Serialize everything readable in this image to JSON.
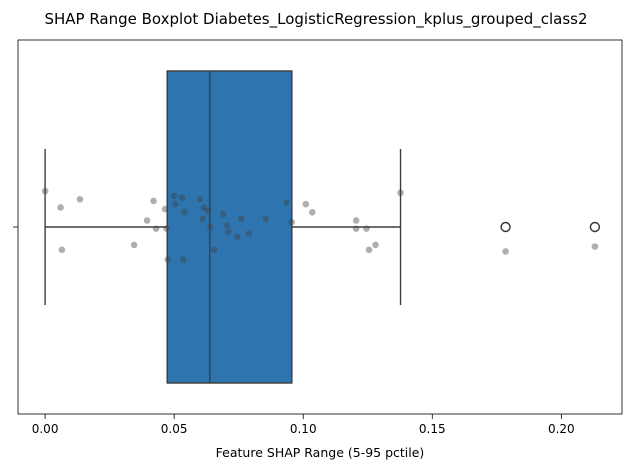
{
  "chart_data": {
    "type": "boxplot",
    "title": "SHAP Range Boxplot Diabetes_LogisticRegression_kplus_grouped_class2",
    "xlabel": "Feature SHAP Range (5-95 pctile)",
    "ylabel": "",
    "xlim": [
      -0.0105,
      0.2235
    ],
    "xticks": [
      "0.00",
      "0.05",
      "0.10",
      "0.15",
      "0.20"
    ],
    "xtick_values": [
      0.0,
      0.05,
      0.1,
      0.15,
      0.2
    ],
    "grid": false,
    "box": {
      "whisker_low": 0.0,
      "q1": 0.0473,
      "median": 0.0638,
      "q3": 0.0956,
      "whisker_high": 0.1377,
      "outliers": [
        0.1784,
        0.213
      ],
      "color": "#2e75b0"
    },
    "strip_points": [
      {
        "x": 0.0,
        "y": 0.22
      },
      {
        "x": 0.0065,
        "y": -0.14
      },
      {
        "x": 0.006,
        "y": 0.12
      },
      {
        "x": 0.0135,
        "y": 0.17
      },
      {
        "x": 0.0345,
        "y": -0.11
      },
      {
        "x": 0.0395,
        "y": 0.04
      },
      {
        "x": 0.042,
        "y": 0.16
      },
      {
        "x": 0.043,
        "y": -0.01
      },
      {
        "x": 0.0465,
        "y": 0.11
      },
      {
        "x": 0.047,
        "y": -0.01
      },
      {
        "x": 0.0475,
        "y": -0.2
      },
      {
        "x": 0.05,
        "y": 0.19
      },
      {
        "x": 0.0505,
        "y": 0.14
      },
      {
        "x": 0.053,
        "y": 0.18
      },
      {
        "x": 0.0535,
        "y": -0.2
      },
      {
        "x": 0.054,
        "y": 0.09
      },
      {
        "x": 0.06,
        "y": 0.17
      },
      {
        "x": 0.061,
        "y": 0.05
      },
      {
        "x": 0.0615,
        "y": 0.12
      },
      {
        "x": 0.063,
        "y": 0.1
      },
      {
        "x": 0.064,
        "y": 0.0
      },
      {
        "x": 0.0655,
        "y": -0.14
      },
      {
        "x": 0.069,
        "y": 0.08
      },
      {
        "x": 0.0705,
        "y": 0.01
      },
      {
        "x": 0.071,
        "y": -0.03
      },
      {
        "x": 0.0745,
        "y": -0.06
      },
      {
        "x": 0.076,
        "y": 0.05
      },
      {
        "x": 0.079,
        "y": -0.04
      },
      {
        "x": 0.0855,
        "y": 0.05
      },
      {
        "x": 0.0935,
        "y": 0.15
      },
      {
        "x": 0.0955,
        "y": 0.03
      },
      {
        "x": 0.101,
        "y": 0.14
      },
      {
        "x": 0.1035,
        "y": 0.09
      },
      {
        "x": 0.1205,
        "y": 0.04
      },
      {
        "x": 0.1205,
        "y": -0.01
      },
      {
        "x": 0.1245,
        "y": -0.01
      },
      {
        "x": 0.1255,
        "y": -0.14
      },
      {
        "x": 0.128,
        "y": -0.11
      },
      {
        "x": 0.1377,
        "y": 0.21
      },
      {
        "x": 0.1784,
        "y": -0.15
      },
      {
        "x": 0.213,
        "y": -0.12
      }
    ]
  }
}
